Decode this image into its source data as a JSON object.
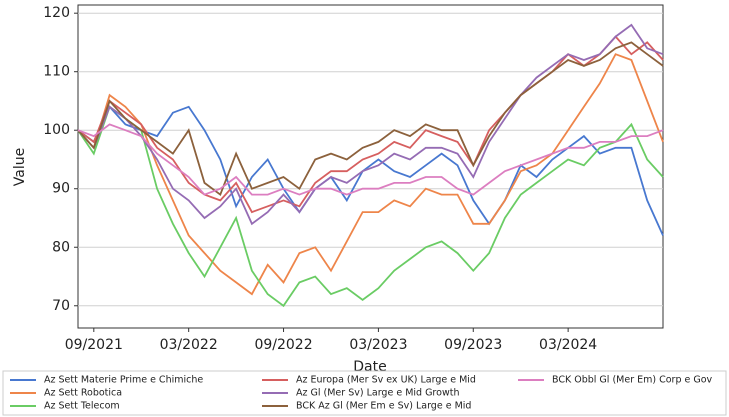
{
  "chart_data": {
    "type": "line",
    "x_label": "Date",
    "y_label": "Value",
    "x": [
      "2021-08",
      "2021-09",
      "2021-10",
      "2021-11",
      "2021-12",
      "2022-01",
      "2022-02",
      "2022-03",
      "2022-04",
      "2022-05",
      "2022-06",
      "2022-07",
      "2022-08",
      "2022-09",
      "2022-10",
      "2022-11",
      "2022-12",
      "2023-01",
      "2023-02",
      "2023-03",
      "2023-04",
      "2023-05",
      "2023-06",
      "2023-07",
      "2023-08",
      "2023-09",
      "2023-10",
      "2023-11",
      "2023-12",
      "2024-01",
      "2024-02",
      "2024-03",
      "2024-04",
      "2024-05",
      "2024-06",
      "2024-07",
      "2024-08",
      "2024-09"
    ],
    "xlim": [
      "2021-08",
      "2024-09"
    ],
    "xticks": [
      {
        "value": "2021-09",
        "label": "09/2021"
      },
      {
        "value": "2022-03",
        "label": "03/2022"
      },
      {
        "value": "2022-09",
        "label": "09/2022"
      },
      {
        "value": "2023-03",
        "label": "03/2023"
      },
      {
        "value": "2023-09",
        "label": "09/2023"
      },
      {
        "value": "2024-03",
        "label": "03/2024"
      }
    ],
    "ylim": [
      66.2,
      121.4
    ],
    "yticks": [
      70,
      80,
      90,
      100,
      110,
      120
    ],
    "grid": true,
    "series": [
      {
        "name": "Az Sett Materie Prime e Chimiche",
        "color": "#4878d0",
        "values": [
          100,
          98,
          104,
          101,
          100,
          99,
          103,
          104,
          100,
          95,
          87,
          92,
          95,
          90,
          86,
          90,
          92,
          88,
          93,
          95,
          93,
          92,
          94,
          96,
          94,
          88,
          84,
          88,
          94,
          92,
          95,
          97,
          99,
          96,
          97,
          97,
          88,
          82
        ]
      },
      {
        "name": "Az Sett Robotica",
        "color": "#ee854a",
        "values": [
          100,
          97,
          106,
          104,
          101,
          94,
          88,
          82,
          79,
          76,
          74,
          72,
          77,
          74,
          79,
          80,
          76,
          81,
          86,
          86,
          88,
          87,
          90,
          89,
          89,
          84,
          84,
          88,
          93,
          94,
          96,
          100,
          104,
          108,
          113,
          112,
          105,
          98
        ]
      },
      {
        "name": "Az Sett Telecom",
        "color": "#6acc64",
        "values": [
          100,
          96,
          104,
          102,
          100,
          90,
          84,
          79,
          75,
          80,
          85,
          76,
          72,
          70,
          74,
          75,
          72,
          73,
          71,
          73,
          76,
          78,
          80,
          81,
          79,
          76,
          79,
          85,
          89,
          91,
          93,
          95,
          94,
          97,
          98,
          101,
          95,
          92
        ]
      },
      {
        "name": "Az Europa (Mer Sv ex UK) Large e Mid",
        "color": "#d65f5f",
        "values": [
          100,
          98,
          105,
          103,
          101,
          97,
          95,
          91,
          89,
          88,
          91,
          86,
          87,
          88,
          87,
          91,
          93,
          93,
          95,
          96,
          98,
          97,
          100,
          99,
          98,
          94,
          100,
          103,
          106,
          108,
          110,
          113,
          111,
          113,
          116,
          113,
          115,
          112
        ]
      },
      {
        "name": "Az Gl (Mer Sv) Large e Mid Growth",
        "color": "#956cb4",
        "values": [
          100,
          97,
          104,
          102,
          99,
          95,
          90,
          88,
          85,
          87,
          90,
          84,
          86,
          89,
          86,
          90,
          92,
          91,
          93,
          94,
          96,
          95,
          97,
          97,
          96,
          92,
          98,
          102,
          106,
          109,
          111,
          113,
          112,
          113,
          116,
          118,
          114,
          113
        ]
      },
      {
        "name": "BCK Az Gl (Mer Em e Sv) Large e Mid",
        "color": "#8c613c",
        "values": [
          100,
          97,
          105,
          102,
          100,
          98,
          96,
          100,
          91,
          89,
          96,
          90,
          91,
          92,
          90,
          95,
          96,
          95,
          97,
          98,
          100,
          99,
          101,
          100,
          100,
          94,
          99,
          103,
          106,
          108,
          110,
          112,
          111,
          112,
          114,
          115,
          113,
          111
        ]
      },
      {
        "name": "BCK Obbl Gl (Mer Em) Corp e Gov",
        "color": "#dc7ec0",
        "values": [
          100,
          99,
          101,
          100,
          99,
          96,
          94,
          92,
          89,
          90,
          92,
          89,
          89,
          90,
          89,
          90,
          90,
          89,
          90,
          90,
          91,
          91,
          92,
          92,
          90,
          89,
          91,
          93,
          94,
          95,
          96,
          97,
          97,
          98,
          98,
          99,
          99,
          100
        ]
      }
    ]
  }
}
